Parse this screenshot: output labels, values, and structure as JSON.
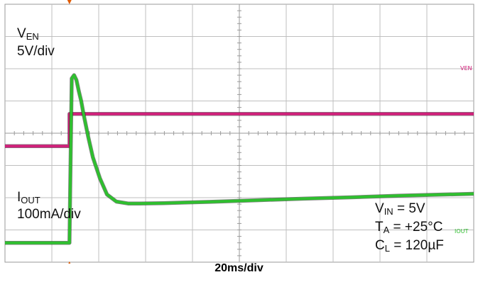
{
  "chart_data": {
    "type": "line",
    "xlabel": "20ms/div",
    "x_unit": "ms",
    "xlim": [
      -27.5,
      172.5
    ],
    "ydivisions": 8,
    "conditions": [
      {
        "base": "V",
        "sub": "IN",
        "tail": " = 5V"
      },
      {
        "base": "T",
        "sub": "A",
        "tail": " = +25°C"
      },
      {
        "base": "C",
        "sub": "L",
        "tail": " = 120µF"
      }
    ],
    "series": [
      {
        "name_base": "V",
        "name_sub": "EN",
        "scale": "5V/div",
        "tag": "VEN",
        "color": "#d0207a",
        "unit": "V",
        "y_zero_div": 3.6,
        "volts_per_div": 5,
        "x": [
          -27.5,
          0,
          0,
          172.5
        ],
        "values": [
          0,
          0,
          5,
          5
        ]
      },
      {
        "name_base": "I",
        "name_sub": "OUT",
        "scale": "100mA/div",
        "tag": "IOUT",
        "color": "#2fbf2f",
        "unit": "mA",
        "y_zero_div": 0.6,
        "ma_per_div": 100,
        "x": [
          -27.5,
          0,
          0,
          1,
          2,
          3,
          4,
          5,
          6,
          8,
          10,
          13,
          16,
          20,
          25,
          30,
          40,
          60,
          80,
          100,
          120,
          140,
          172.5
        ],
        "values": [
          0,
          0,
          0,
          510,
          520,
          505,
          470,
          440,
          400,
          330,
          265,
          200,
          150,
          128,
          122,
          122,
          123,
          127,
          132,
          137,
          141,
          146,
          152
        ]
      }
    ]
  },
  "colors": {
    "grid": "#bfbfbf",
    "grid_axis": "#9a9a9a",
    "trigger": "#e05a00",
    "background": "#ffffff"
  }
}
